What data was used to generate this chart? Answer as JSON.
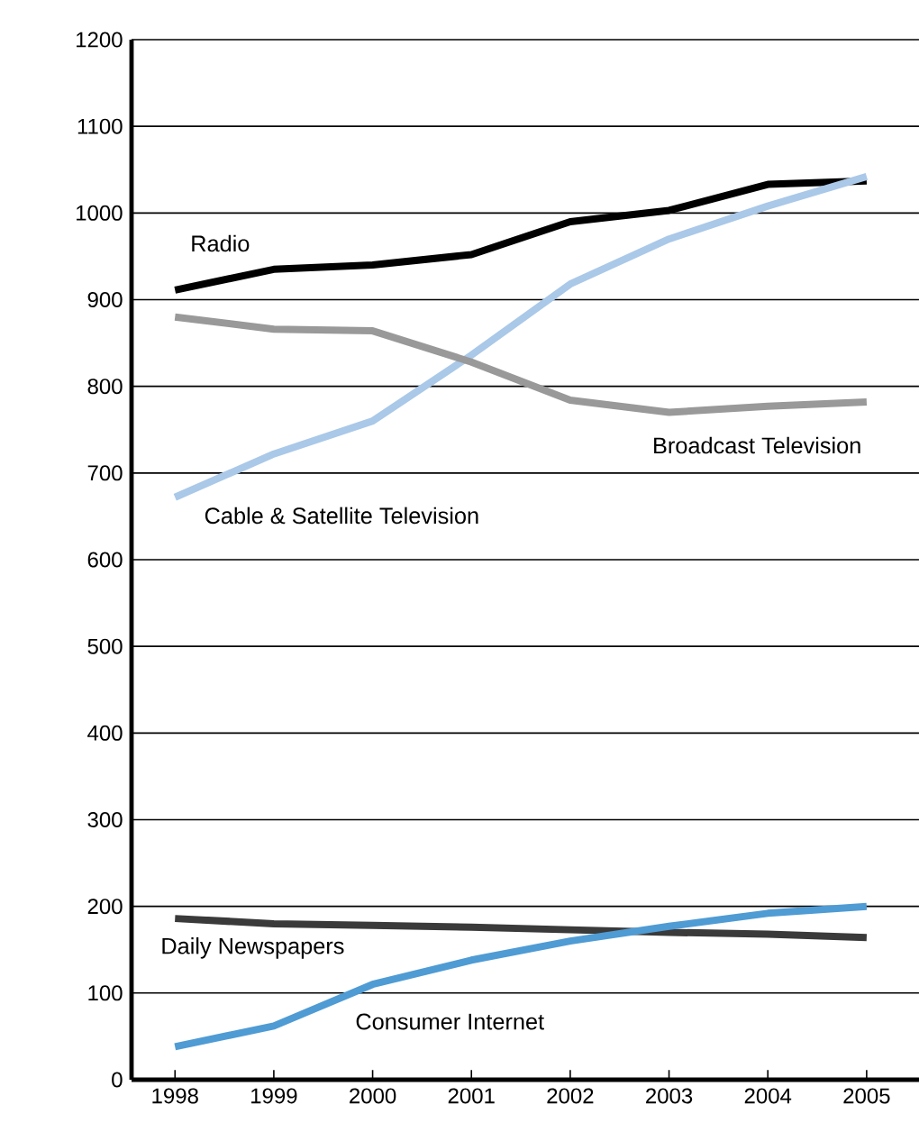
{
  "chart_data": {
    "type": "line",
    "x": [
      1998,
      1999,
      2000,
      2001,
      2002,
      2003,
      2004,
      2005
    ],
    "series": [
      {
        "name": "Radio",
        "color": "#000000",
        "values": [
          911,
          935,
          940,
          952,
          990,
          1003,
          1033,
          1037
        ]
      },
      {
        "name": "Cable & Satellite Television",
        "color": "#aac8e8",
        "values": [
          672,
          722,
          760,
          836,
          918,
          970,
          1008,
          1042
        ]
      },
      {
        "name": "Broadcast Television",
        "color": "#999999",
        "values": [
          880,
          866,
          864,
          828,
          784,
          770,
          777,
          782
        ]
      },
      {
        "name": "Daily Newspapers",
        "color": "#3a3a3a",
        "values": [
          186,
          180,
          178,
          176,
          173,
          170,
          168,
          164
        ]
      },
      {
        "name": "Consumer Internet",
        "color": "#4f9bd4",
        "values": [
          38,
          62,
          110,
          138,
          160,
          177,
          192,
          200
        ]
      }
    ],
    "xlim": [
      1997.56,
      2005.53
    ],
    "ylim": [
      0,
      1200
    ],
    "xticks": [
      1998,
      1999,
      2000,
      2001,
      2002,
      2003,
      2004,
      2005
    ],
    "yticks": [
      0,
      100,
      200,
      300,
      400,
      500,
      600,
      700,
      800,
      900,
      1000,
      1100,
      1200
    ],
    "grid": "y",
    "marker": "none",
    "line_style": "solid"
  }
}
